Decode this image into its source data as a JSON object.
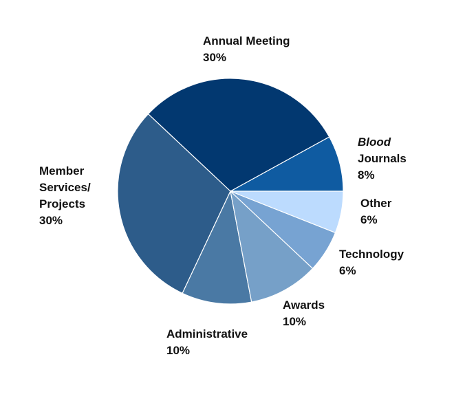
{
  "chart_data": {
    "type": "pie",
    "slices": [
      {
        "key": "annual",
        "label_lines": [
          "Annual Meeting"
        ],
        "value": 30,
        "value_label": "30%",
        "color": "#023870"
      },
      {
        "key": "blood",
        "label_lines": [
          "Blood",
          "Journals"
        ],
        "value": 8,
        "value_label": "8%",
        "color": "#0F5BA1"
      },
      {
        "key": "other",
        "label_lines": [
          "Other"
        ],
        "value": 6,
        "value_label": "6%",
        "color": "#BCDBFE"
      },
      {
        "key": "tech",
        "label_lines": [
          "Technology"
        ],
        "value": 6,
        "value_label": "6%",
        "color": "#77A3D2"
      },
      {
        "key": "awards",
        "label_lines": [
          "Awards"
        ],
        "value": 10,
        "value_label": "10%",
        "color": "#76A0C8"
      },
      {
        "key": "admin",
        "label_lines": [
          "Administrative"
        ],
        "value": 10,
        "value_label": "10%",
        "color": "#4A79A4"
      },
      {
        "key": "member",
        "label_lines": [
          "Member",
          "Services/",
          "Projects"
        ],
        "value": 30,
        "value_label": "30%",
        "color": "#2D5C8A"
      }
    ],
    "direction": "clockwise",
    "start": "3 o'clock"
  }
}
